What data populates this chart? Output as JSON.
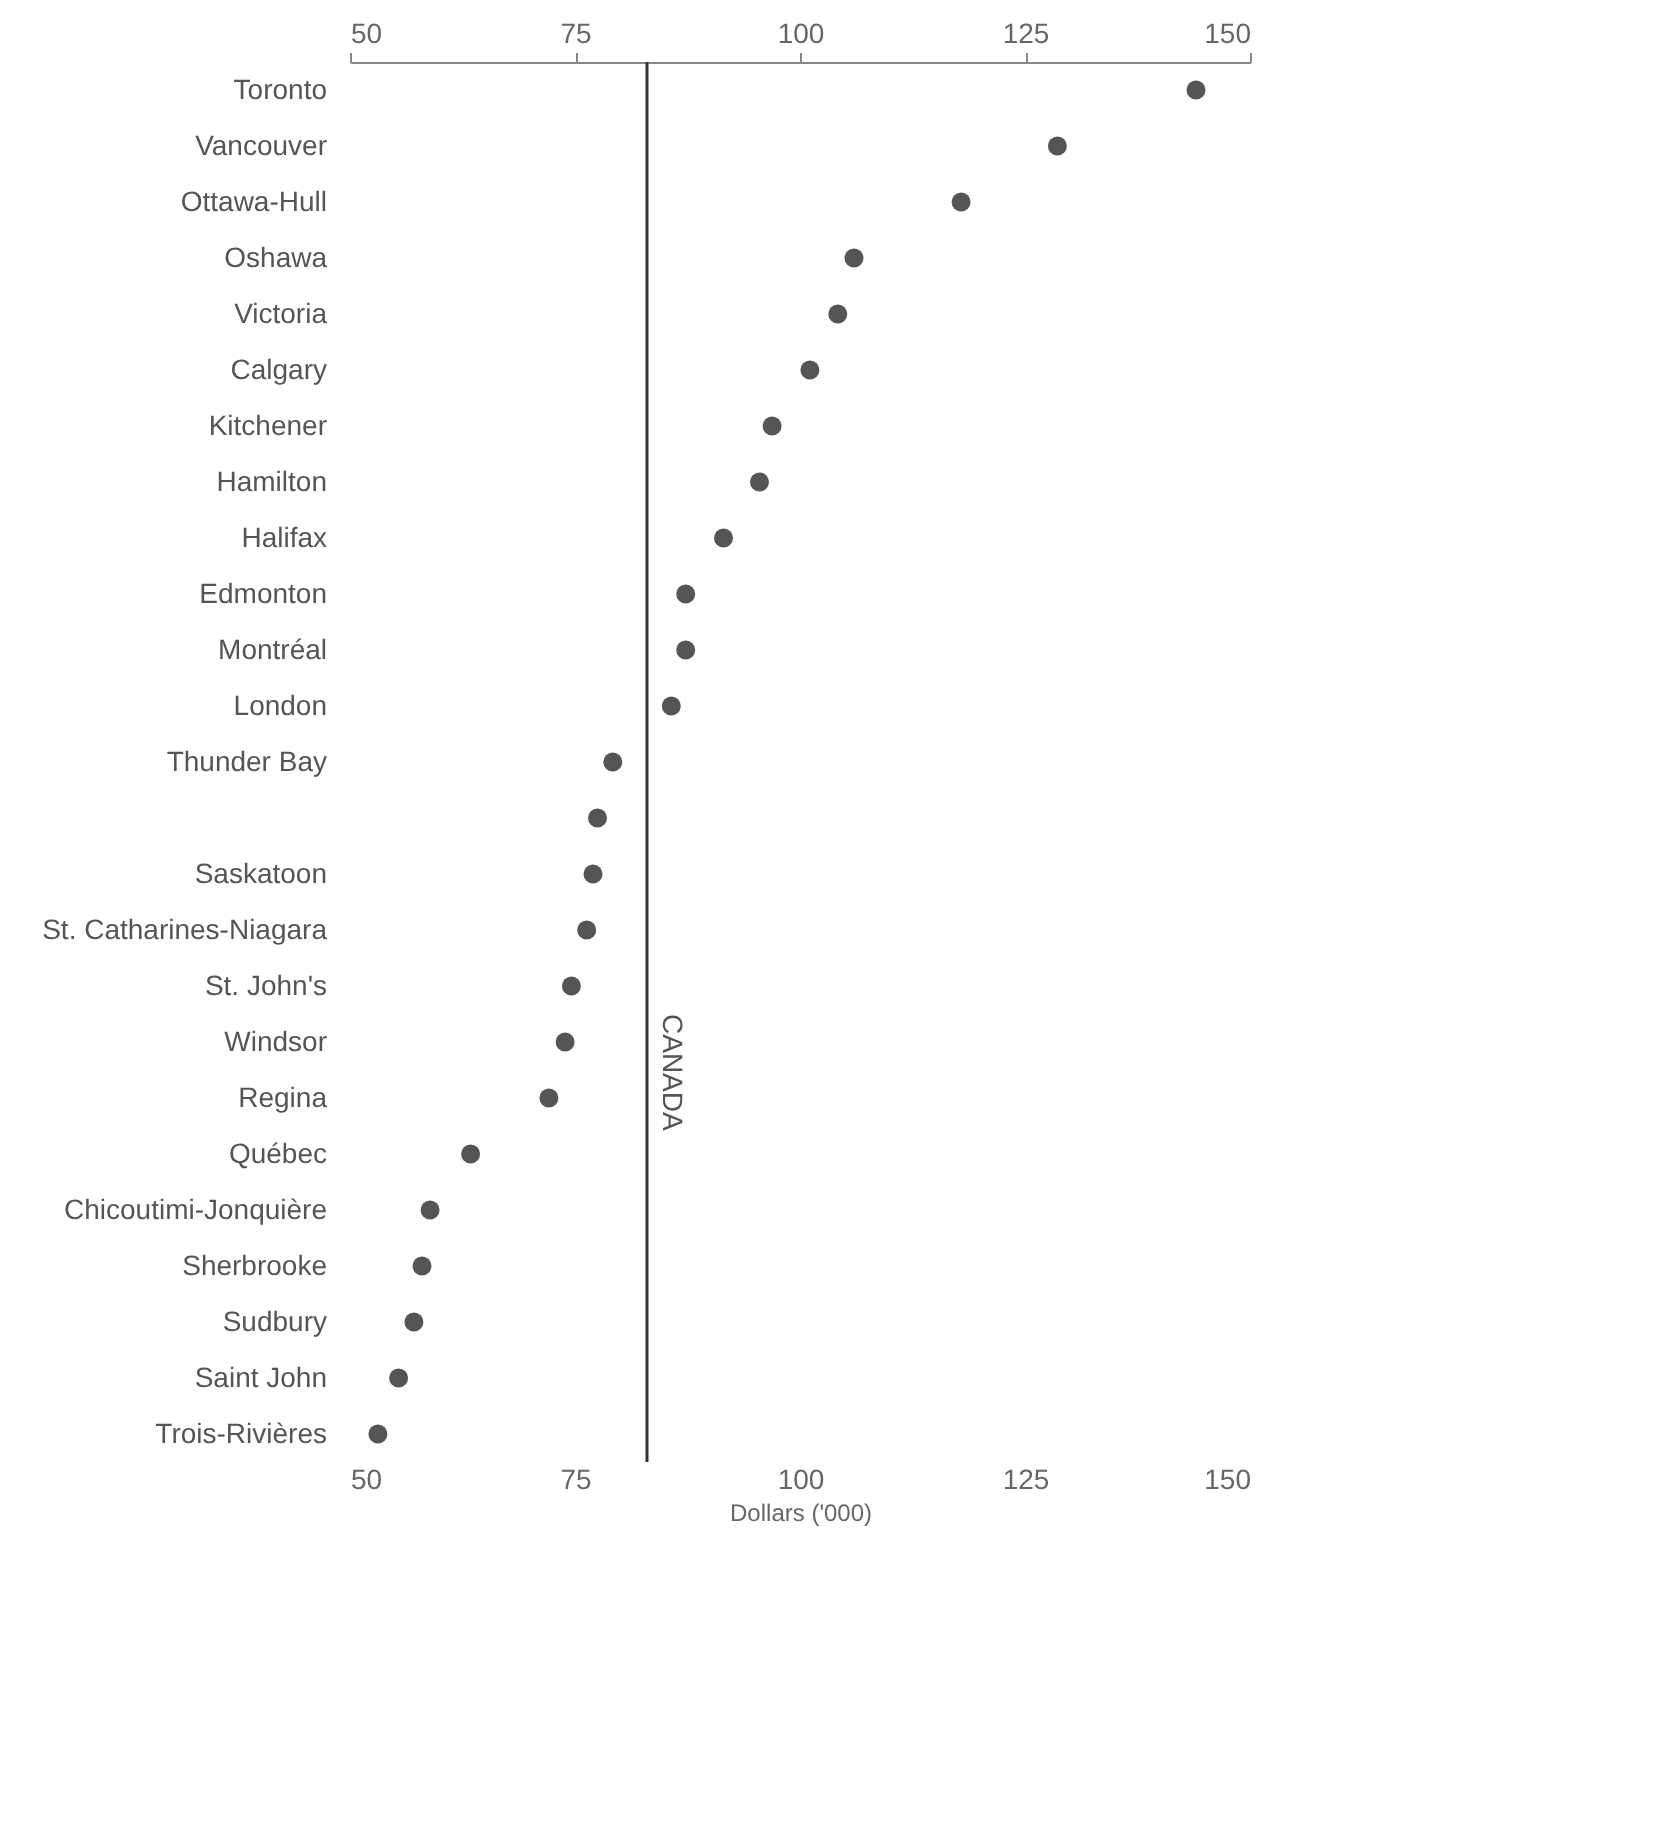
{
  "chart_data": {
    "type": "scatter",
    "xlabel": "Dollars ('000)",
    "categories": [
      "Toronto",
      "Vancouver",
      "Ottawa-Hull",
      "Oshawa",
      "Victoria",
      "Calgary",
      "Kitchener",
      "Hamilton",
      "Halifax",
      "Edmonton",
      "Montréal",
      "London",
      "Thunder Bay",
      null,
      "Saskatoon",
      "St. Catharines-Niagara",
      "St. John's",
      "Windsor",
      "Regina",
      "Québec",
      "Chicoutimi-Jonquière",
      "Sherbrooke",
      "Sudbury",
      "Saint John",
      "Trois-Rivières"
    ],
    "series": [
      {
        "color": "#555555",
        "values": [
          144,
          128.6,
          117.9,
          106,
          104.2,
          101.1,
          96.9,
          95.5,
          91.5,
          87.3,
          87.3,
          85.7,
          79.2,
          77.5,
          77,
          76.3,
          74.6,
          73.9,
          72.1,
          63.4,
          58.9,
          58,
          57.1,
          55.4,
          53.1
        ]
      }
    ],
    "orientation": "horizontal",
    "marker": "circle",
    "grid": false,
    "legend": false,
    "xlim": [
      50,
      150
    ],
    "xticks": [
      50,
      75,
      100,
      125,
      150
    ],
    "x2lim": [
      50,
      150
    ],
    "x2ticks": [
      50,
      75,
      100,
      125,
      150
    ],
    "ref_lines": [
      {
        "axis": "x",
        "value": 83,
        "label": "CANADA",
        "color": "#333333"
      }
    ]
  }
}
